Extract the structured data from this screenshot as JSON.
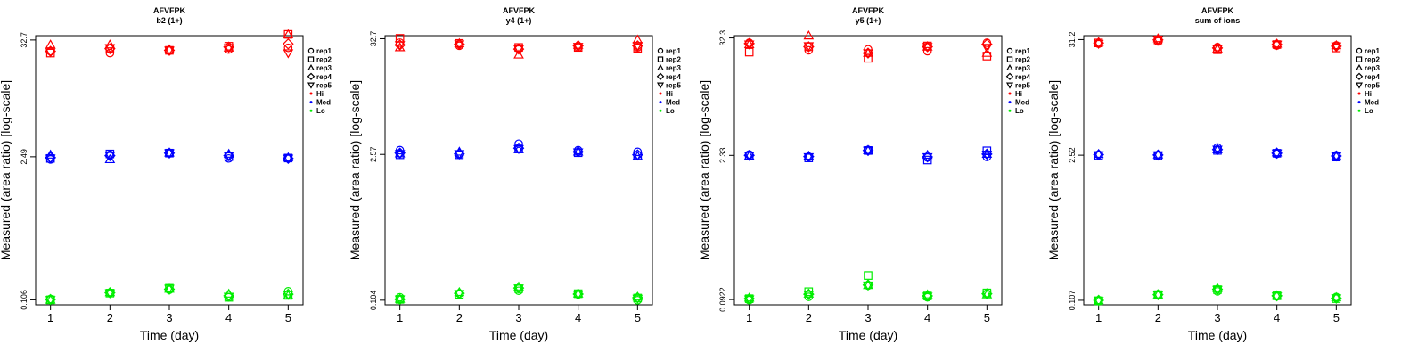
{
  "legend_colors": {
    "Hi": "#ff0000",
    "Med": "#0000ff",
    "Lo": "#00ee00"
  },
  "legend_entries": [
    {
      "label": "rep1",
      "shape": "circle"
    },
    {
      "label": "rep2",
      "shape": "square"
    },
    {
      "label": "rep3",
      "shape": "triangle-up"
    },
    {
      "label": "rep4",
      "shape": "diamond"
    },
    {
      "label": "rep5",
      "shape": "triangle-down"
    },
    {
      "label": "Hi",
      "shape": "dot"
    },
    {
      "label": "Med",
      "shape": "dot"
    },
    {
      "label": "Lo",
      "shape": "dot"
    }
  ],
  "chart_data": [
    {
      "type": "scatter",
      "title": "AFVFPK",
      "subtitle": "b2 (1+)",
      "xlabel": "Time (day)",
      "ylabel": "Measured (area ratio) [log-scale]",
      "log_y": true,
      "x_ticks": [
        "1",
        "2",
        "3",
        "4",
        "5"
      ],
      "y_ticks": [
        {
          "value": 0.106,
          "label": "0.106"
        },
        {
          "value": 2.49,
          "label": "2.49"
        },
        {
          "value": 32.7,
          "label": "32.7"
        }
      ],
      "ylim": [
        0.095,
        36
      ],
      "xlim": [
        0.75,
        5.25
      ],
      "legend_position": "right",
      "series": [
        {
          "level": "Hi",
          "points": [
            {
              "rep": "rep1",
              "values": [
                25.5,
                24.5,
                25.8,
                26.5,
                27.5
              ]
            },
            {
              "rep": "rep2",
              "values": [
                24.5,
                27,
                26,
                28.5,
                37
              ]
            },
            {
              "rep": "rep3",
              "values": [
                29.5,
                29.5,
                26.5,
                27.5,
                37
              ]
            },
            {
              "rep": "rep4",
              "values": [
                25.5,
                27,
                26,
                28,
                30
              ]
            },
            {
              "rep": "rep5",
              "values": [
                25,
                27.5,
                26,
                27.5,
                24.5
              ]
            }
          ]
        },
        {
          "level": "Med",
          "points": [
            {
              "rep": "rep1",
              "values": [
                2.35,
                2.6,
                2.68,
                2.4,
                2.4
              ]
            },
            {
              "rep": "rep2",
              "values": [
                2.4,
                2.65,
                2.7,
                2.5,
                2.42
              ]
            },
            {
              "rep": "rep3",
              "values": [
                2.6,
                2.35,
                2.72,
                2.65,
                2.45
              ]
            },
            {
              "rep": "rep4",
              "values": [
                2.45,
                2.55,
                2.7,
                2.55,
                2.4
              ]
            },
            {
              "rep": "rep5",
              "values": [
                2.4,
                2.55,
                2.7,
                2.55,
                2.4
              ]
            }
          ]
        },
        {
          "level": "Lo",
          "points": [
            {
              "rep": "rep1",
              "values": [
                0.108,
                0.124,
                0.132,
                0.112,
                0.128
              ]
            },
            {
              "rep": "rep2",
              "values": [
                0.106,
                0.123,
                0.137,
                0.112,
                0.117
              ]
            },
            {
              "rep": "rep3",
              "values": [
                0.106,
                0.125,
                0.135,
                0.121,
                0.117
              ]
            },
            {
              "rep": "rep4",
              "values": [
                0.107,
                0.124,
                0.134,
                0.116,
                0.12
              ]
            },
            {
              "rep": "rep5",
              "values": [
                0.106,
                0.123,
                0.136,
                0.114,
                0.119
              ]
            }
          ]
        }
      ]
    },
    {
      "type": "scatter",
      "title": "AFVFPK",
      "subtitle": "y4 (1+)",
      "xlabel": "Time (day)",
      "ylabel": "Measured (area ratio) [log-scale]",
      "log_y": true,
      "x_ticks": [
        "1",
        "2",
        "3",
        "4",
        "5"
      ],
      "y_ticks": [
        {
          "value": 0.104,
          "label": "0.104"
        },
        {
          "value": 2.57,
          "label": "2.57"
        },
        {
          "value": 32.7,
          "label": "32.7"
        }
      ],
      "ylim": [
        0.094,
        35
      ],
      "xlim": [
        0.75,
        5.25
      ],
      "legend_position": "right",
      "series": [
        {
          "level": "Hi",
          "points": [
            {
              "rep": "rep1",
              "values": [
                30,
                28,
                26.5,
                27,
                27
              ]
            },
            {
              "rep": "rep2",
              "values": [
                33,
                29.5,
                27,
                27,
                26.5
              ]
            },
            {
              "rep": "rep3",
              "values": [
                27,
                29.5,
                23,
                28.5,
                32
              ]
            },
            {
              "rep": "rep4",
              "values": [
                28.5,
                29,
                26,
                28,
                28
              ]
            },
            {
              "rep": "rep5",
              "values": [
                28.5,
                29,
                26,
                27.5,
                28
              ]
            }
          ]
        },
        {
          "level": "Med",
          "points": [
            {
              "rep": "rep1",
              "values": [
                2.82,
                2.57,
                3.25,
                2.82,
                2.72
              ]
            },
            {
              "rep": "rep2",
              "values": [
                2.55,
                2.55,
                2.9,
                2.67,
                2.5
              ]
            },
            {
              "rep": "rep3",
              "values": [
                2.62,
                2.72,
                2.87,
                2.72,
                2.47
              ]
            },
            {
              "rep": "rep4",
              "values": [
                2.65,
                2.6,
                2.95,
                2.72,
                2.55
              ]
            },
            {
              "rep": "rep5",
              "values": [
                2.6,
                2.6,
                2.9,
                2.7,
                2.52
              ]
            }
          ]
        },
        {
          "level": "Lo",
          "points": [
            {
              "rep": "rep1",
              "values": [
                0.111,
                0.12,
                0.128,
                0.118,
                0.104
              ]
            },
            {
              "rep": "rep2",
              "values": [
                0.106,
                0.118,
                0.134,
                0.12,
                0.109
              ]
            },
            {
              "rep": "rep3",
              "values": [
                0.107,
                0.124,
                0.14,
                0.12,
                0.112
              ]
            },
            {
              "rep": "rep4",
              "values": [
                0.106,
                0.121,
                0.136,
                0.119,
                0.11
              ]
            },
            {
              "rep": "rep5",
              "values": [
                0.106,
                0.12,
                0.135,
                0.118,
                0.108
              ]
            }
          ]
        }
      ]
    },
    {
      "type": "scatter",
      "title": "AFVFPK",
      "subtitle": "y5 (1+)",
      "xlabel": "Time (day)",
      "ylabel": "Measured (area ratio) [log-scale]",
      "log_y": true,
      "x_ticks": [
        "1",
        "2",
        "3",
        "4",
        "5"
      ],
      "y_ticks": [
        {
          "value": 0.0922,
          "label": "0.0922"
        },
        {
          "value": 2.33,
          "label": "2.33"
        },
        {
          "value": 32.3,
          "label": "32.3"
        }
      ],
      "ylim": [
        0.082,
        34
      ],
      "xlim": [
        0.75,
        5.25
      ],
      "legend_position": "right",
      "series": [
        {
          "level": "Hi",
          "points": [
            {
              "rep": "rep1",
              "values": [
                29,
                24.5,
                25,
                24,
                29
              ]
            },
            {
              "rep": "rep2",
              "values": [
                23.5,
                26.5,
                20.5,
                27,
                21.5
              ]
            },
            {
              "rep": "rep3",
              "values": [
                28,
                34,
                23,
                26.5,
                23
              ]
            },
            {
              "rep": "rep4",
              "values": [
                28.5,
                26.5,
                23,
                26.5,
                28
              ]
            },
            {
              "rep": "rep5",
              "values": [
                28,
                27,
                23,
                26.5,
                26
              ]
            }
          ]
        },
        {
          "level": "Med",
          "points": [
            {
              "rep": "rep1",
              "values": [
                2.38,
                2.25,
                2.63,
                2.22,
                2.25
              ]
            },
            {
              "rep": "rep2",
              "values": [
                2.3,
                2.2,
                2.6,
                2.1,
                2.58
              ]
            },
            {
              "rep": "rep3",
              "values": [
                2.3,
                2.3,
                2.6,
                2.35,
                2.4
              ]
            },
            {
              "rep": "rep4",
              "values": [
                2.33,
                2.27,
                2.6,
                2.25,
                2.4
              ]
            },
            {
              "rep": "rep5",
              "values": [
                2.32,
                2.25,
                2.6,
                2.25,
                2.38
              ]
            }
          ]
        },
        {
          "level": "Lo",
          "points": [
            {
              "rep": "rep1",
              "values": [
                0.091,
                0.098,
                0.126,
                0.097,
                0.105
              ]
            },
            {
              "rep": "rep2",
              "values": [
                0.094,
                0.11,
                0.158,
                0.1,
                0.107
              ]
            },
            {
              "rep": "rep3",
              "values": [
                0.096,
                0.105,
                0.127,
                0.103,
                0.103
              ]
            },
            {
              "rep": "rep4",
              "values": [
                0.094,
                0.104,
                0.128,
                0.1,
                0.105
              ]
            },
            {
              "rep": "rep5",
              "values": [
                0.093,
                0.103,
                0.127,
                0.099,
                0.104
              ]
            }
          ]
        }
      ]
    },
    {
      "type": "scatter",
      "title": "AFVFPK",
      "subtitle": "sum of ions",
      "xlabel": "Time (day)",
      "ylabel": "Measured (area ratio) [log-scale]",
      "log_y": true,
      "x_ticks": [
        "1",
        "2",
        "3",
        "4",
        "5"
      ],
      "y_ticks": [
        {
          "value": 0.107,
          "label": "0.107"
        },
        {
          "value": 2.52,
          "label": "2.52"
        },
        {
          "value": 31.2,
          "label": "31.2"
        }
      ],
      "ylim": [
        0.097,
        34
      ],
      "xlim": [
        0.75,
        5.25
      ],
      "legend_position": "right",
      "series": [
        {
          "level": "Hi",
          "points": [
            {
              "rep": "rep1",
              "values": [
                28.5,
                30,
                26.5,
                27.5,
                27.5
              ]
            },
            {
              "rep": "rep2",
              "values": [
                29,
                31,
                25,
                28,
                26
              ]
            },
            {
              "rep": "rep3",
              "values": [
                29.5,
                32,
                25.5,
                28.5,
                27.5
              ]
            },
            {
              "rep": "rep4",
              "values": [
                29,
                31,
                26,
                28,
                27
              ]
            },
            {
              "rep": "rep5",
              "values": [
                28.5,
                31,
                25.5,
                28,
                27
              ]
            }
          ]
        },
        {
          "level": "Med",
          "points": [
            {
              "rep": "rep1",
              "values": [
                2.55,
                2.52,
                2.98,
                2.6,
                2.52
              ]
            },
            {
              "rep": "rep2",
              "values": [
                2.5,
                2.5,
                2.8,
                2.63,
                2.42
              ]
            },
            {
              "rep": "rep3",
              "values": [
                2.58,
                2.55,
                2.85,
                2.67,
                2.47
              ]
            },
            {
              "rep": "rep4",
              "values": [
                2.55,
                2.53,
                2.85,
                2.63,
                2.48
              ]
            },
            {
              "rep": "rep5",
              "values": [
                2.53,
                2.52,
                2.85,
                2.63,
                2.47
              ]
            }
          ]
        },
        {
          "level": "Lo",
          "points": [
            {
              "rep": "rep1",
              "values": [
                0.107,
                0.12,
                0.13,
                0.117,
                0.115
              ]
            },
            {
              "rep": "rep2",
              "values": [
                0.106,
                0.121,
                0.135,
                0.118,
                0.111
              ]
            },
            {
              "rep": "rep3",
              "values": [
                0.107,
                0.121,
                0.139,
                0.118,
                0.114
              ]
            },
            {
              "rep": "rep4",
              "values": [
                0.107,
                0.121,
                0.136,
                0.118,
                0.112
              ]
            },
            {
              "rep": "rep5",
              "values": [
                0.106,
                0.12,
                0.135,
                0.117,
                0.112
              ]
            }
          ]
        }
      ]
    }
  ]
}
